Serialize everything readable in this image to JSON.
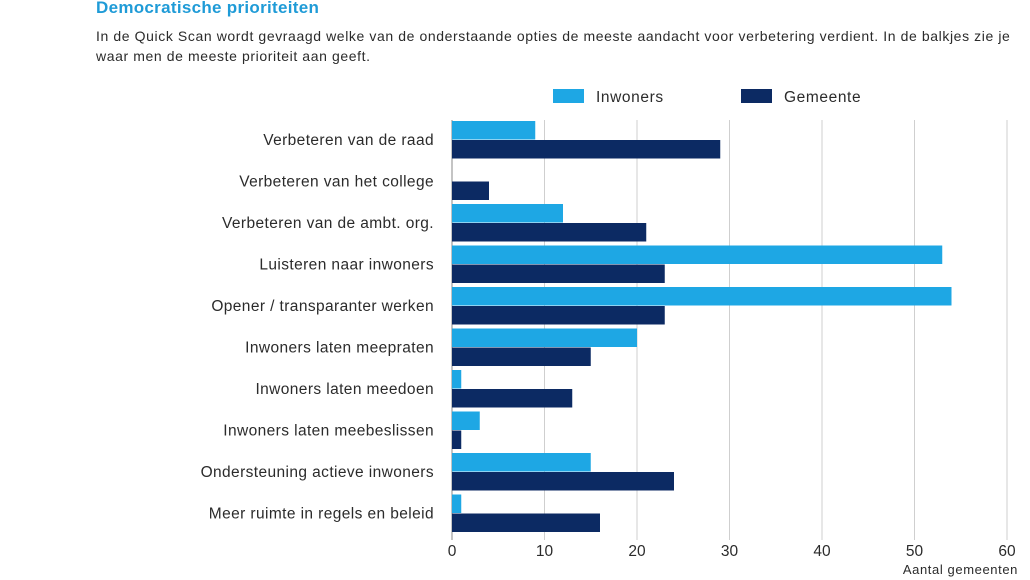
{
  "header": {
    "title": "Democratische prioriteiten",
    "subtitle": "In de Quick Scan wordt gevraagd welke van de onderstaande opties de meeste aandacht voor verbetering verdient. In de balkjes zie je waar men de meeste prioriteit aan geeft."
  },
  "chart_data": {
    "type": "bar",
    "orientation": "horizontal",
    "categories": [
      "Verbeteren van de raad",
      "Verbeteren van het college",
      "Verbeteren van de ambt. org.",
      "Luisteren naar inwoners",
      "Opener / transparanter werken",
      "Inwoners laten meepraten",
      "Inwoners laten meedoen",
      "Inwoners laten meebeslissen",
      "Ondersteuning actieve inwoners",
      "Meer ruimte in regels en beleid"
    ],
    "series": [
      {
        "name": "Inwoners",
        "color": "#1ea7e4",
        "values": [
          9,
          0,
          12,
          53,
          54,
          20,
          1,
          3,
          15,
          1
        ]
      },
      {
        "name": "Gemeente",
        "color": "#0c2a63",
        "values": [
          29,
          4,
          21,
          23,
          23,
          15,
          13,
          1,
          24,
          16
        ]
      }
    ],
    "xlabel": "Aantal gemeenten",
    "xlim": [
      0,
      60
    ],
    "xticks": [
      0,
      10,
      20,
      30,
      40,
      50,
      60
    ],
    "grid": true,
    "legend": "top"
  }
}
